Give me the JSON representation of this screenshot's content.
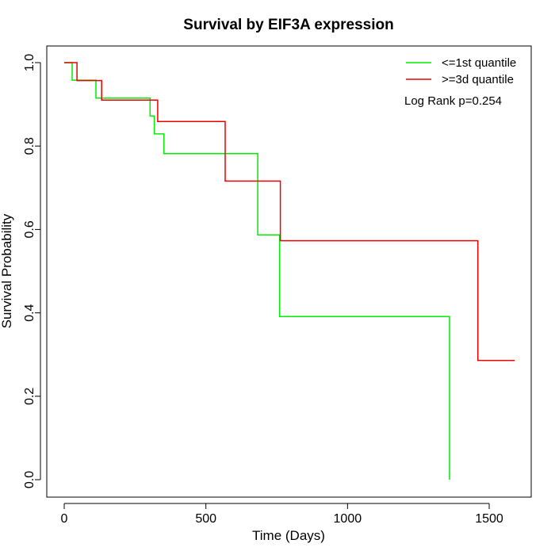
{
  "chart_data": {
    "type": "line",
    "step": true,
    "title": "Survival by EIF3A expression",
    "xlabel": "Time (Days)",
    "ylabel": "Survival Probability",
    "xlim": [
      0,
      1650
    ],
    "ylim": [
      0,
      1
    ],
    "x_ticks": [
      0,
      500,
      1000,
      1500
    ],
    "x_tick_labels": [
      "0",
      "500",
      "1000",
      "1500"
    ],
    "y_ticks": [
      0,
      0.2,
      0.4,
      0.6,
      0.8,
      1
    ],
    "y_tick_labels": [
      "0.0",
      "0.2",
      "0.4",
      "0.6",
      "0.8",
      "1.0"
    ],
    "grid": false,
    "legend_position": "top-right",
    "annotation": "Log Rank p=0.254",
    "series": [
      {
        "name": "<=1st quantile",
        "color": "#00ee00",
        "points": [
          [
            0,
            1.0
          ],
          [
            28,
            1.0
          ],
          [
            28,
            0.958
          ],
          [
            112,
            0.958
          ],
          [
            112,
            0.915
          ],
          [
            303,
            0.915
          ],
          [
            303,
            0.872
          ],
          [
            318,
            0.872
          ],
          [
            318,
            0.829
          ],
          [
            352,
            0.829
          ],
          [
            352,
            0.782
          ],
          [
            683,
            0.782
          ],
          [
            683,
            0.587
          ],
          [
            760,
            0.587
          ],
          [
            760,
            0.391
          ],
          [
            1360,
            0.391
          ],
          [
            1360,
            0.0
          ]
        ]
      },
      {
        "name": ">=3d quantile",
        "color": "#ee0000",
        "points": [
          [
            0,
            1.0
          ],
          [
            45,
            1.0
          ],
          [
            45,
            0.957
          ],
          [
            132,
            0.957
          ],
          [
            132,
            0.91
          ],
          [
            330,
            0.91
          ],
          [
            330,
            0.859
          ],
          [
            568,
            0.859
          ],
          [
            568,
            0.716
          ],
          [
            763,
            0.716
          ],
          [
            763,
            0.573
          ],
          [
            1460,
            0.573
          ],
          [
            1460,
            0.286
          ],
          [
            1590,
            0.286
          ]
        ]
      }
    ]
  }
}
